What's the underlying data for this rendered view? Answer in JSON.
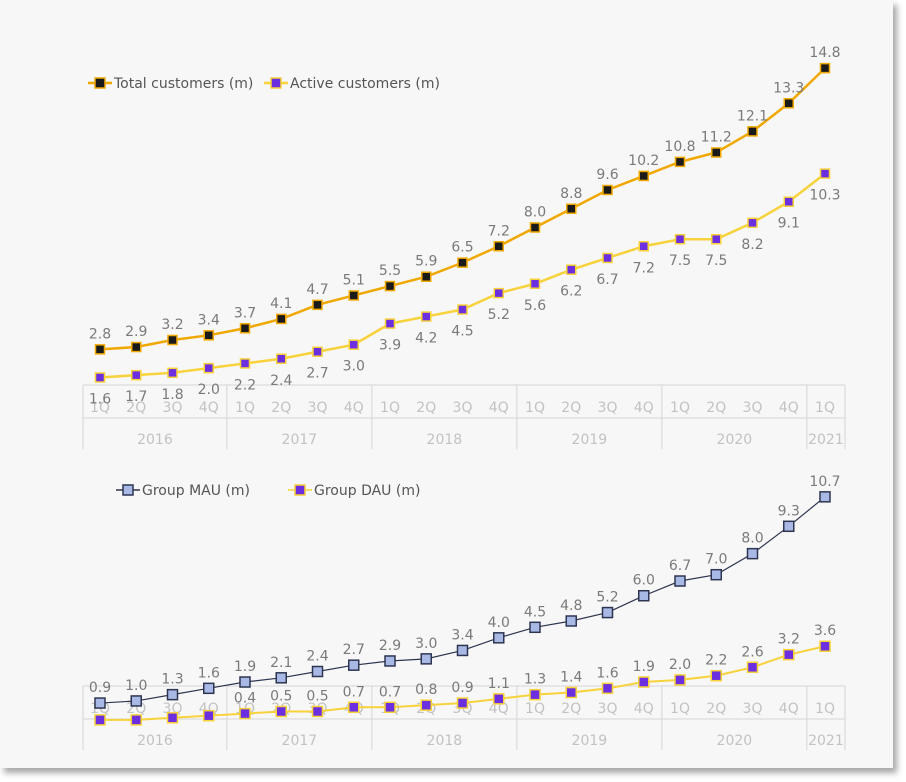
{
  "chart_data": [
    {
      "type": "line",
      "categories": [
        "1Q",
        "2Q",
        "3Q",
        "4Q",
        "1Q",
        "2Q",
        "3Q",
        "4Q",
        "1Q",
        "2Q",
        "3Q",
        "4Q",
        "1Q",
        "2Q",
        "3Q",
        "4Q",
        "1Q",
        "2Q",
        "3Q",
        "4Q",
        "1Q"
      ],
      "years": [
        {
          "label": "2016",
          "quarters": 4
        },
        {
          "label": "2017",
          "quarters": 4
        },
        {
          "label": "2018",
          "quarters": 4
        },
        {
          "label": "2019",
          "quarters": 4
        },
        {
          "label": "2020",
          "quarters": 4
        },
        {
          "label": "2021",
          "quarters": 1
        }
      ],
      "ylim": [
        0,
        16
      ],
      "legend_position": "top-left",
      "grid": false,
      "series": [
        {
          "name": "Total customers (m)",
          "color": "#f0a800",
          "marker_fill": "#1a1a1a",
          "marker_stroke": "#f0a800",
          "labels": "above",
          "values": [
            2.8,
            2.9,
            3.2,
            3.4,
            3.7,
            4.1,
            4.7,
            5.1,
            5.5,
            5.9,
            6.5,
            7.2,
            8.0,
            8.8,
            9.6,
            10.2,
            10.8,
            11.2,
            12.1,
            13.3,
            14.8
          ],
          "display": [
            "2.8",
            "2.9",
            "3.2",
            "3.4",
            "3.7",
            "4.1",
            "4.7",
            "5.1",
            "5.5",
            "5.9",
            "6.5",
            "7.2",
            "8.0",
            "8.8",
            "9.6",
            "10.2",
            "10.8",
            "11.2",
            "12.1",
            "13.3",
            "14.8"
          ]
        },
        {
          "name": "Active customers (m)",
          "color": "#f7d23a",
          "marker_fill": "#6b2fe0",
          "marker_stroke": "#f7d23a",
          "labels": "below",
          "values": [
            1.6,
            1.7,
            1.8,
            2.0,
            2.2,
            2.4,
            2.7,
            3.0,
            3.9,
            4.2,
            4.5,
            5.2,
            5.6,
            6.2,
            6.7,
            7.2,
            7.5,
            7.5,
            8.2,
            9.1,
            10.3
          ],
          "display": [
            "1.6",
            "1.7",
            "1.8",
            "2.0",
            "2.2",
            "2.4",
            "2.7",
            "3.0",
            "3.9",
            "4.2",
            "4.5",
            "5.2",
            "5.6",
            "6.2",
            "6.7",
            "7.2",
            "7.5",
            "7.5",
            "8.2",
            "9.1",
            "10.3"
          ]
        }
      ]
    },
    {
      "type": "line",
      "categories": [
        "1Q",
        "2Q",
        "3Q",
        "4Q",
        "1Q",
        "2Q",
        "3Q",
        "4Q",
        "1Q",
        "2Q",
        "3Q",
        "4Q",
        "1Q",
        "2Q",
        "3Q",
        "4Q",
        "1Q",
        "2Q",
        "3Q",
        "4Q",
        "1Q"
      ],
      "years": [
        {
          "label": "2016",
          "quarters": 4
        },
        {
          "label": "2017",
          "quarters": 4
        },
        {
          "label": "2018",
          "quarters": 4
        },
        {
          "label": "2019",
          "quarters": 4
        },
        {
          "label": "2020",
          "quarters": 4
        },
        {
          "label": "2021",
          "quarters": 1
        }
      ],
      "ylim": [
        0,
        11.5
      ],
      "legend_position": "top-left",
      "grid": false,
      "series": [
        {
          "name": "Group MAU (m)",
          "color": "#2e3550",
          "marker_fill": "#a9b9e6",
          "marker_stroke": "#2e3550",
          "labels": "above",
          "values": [
            0.9,
            1.0,
            1.3,
            1.6,
            1.9,
            2.1,
            2.4,
            2.7,
            2.9,
            3.0,
            3.4,
            4.0,
            4.5,
            4.8,
            5.2,
            6.0,
            6.7,
            7.0,
            8.0,
            9.3,
            10.7
          ],
          "display": [
            "0.9",
            "1.0",
            "1.3",
            "1.6",
            "1.9",
            "2.1",
            "2.4",
            "2.7",
            "2.9",
            "3.0",
            "3.4",
            "4.0",
            "4.5",
            "4.8",
            "5.2",
            "6.0",
            "6.7",
            "7.0",
            "8.0",
            "9.3",
            "10.7"
          ]
        },
        {
          "name": "Group DAU (m)",
          "color": "#f7d23a",
          "marker_fill": "#6b2fe0",
          "marker_stroke": "#f7d23a",
          "labels": "above",
          "values": [
            0.1,
            0.1,
            0.2,
            0.3,
            0.4,
            0.5,
            0.5,
            0.7,
            0.7,
            0.8,
            0.9,
            1.1,
            1.3,
            1.4,
            1.6,
            1.9,
            2.0,
            2.2,
            2.6,
            3.2,
            3.6
          ],
          "display": [
            "",
            "",
            "",
            "",
            "0.4",
            "0.5",
            "0.5",
            "0.7",
            "0.7",
            "0.8",
            "0.9",
            "1.1",
            "1.3",
            "1.4",
            "1.6",
            "1.9",
            "2.0",
            "2.2",
            "2.6",
            "3.2",
            "3.6"
          ]
        }
      ]
    }
  ]
}
